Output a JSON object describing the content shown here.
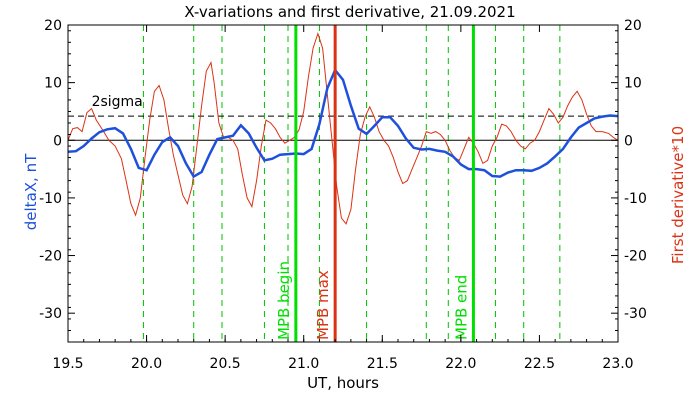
{
  "chart_data": {
    "type": "line",
    "title": "X-variations and first derivative, 21.09.2021",
    "xlabel": "UT, hours",
    "ylabel_left": "deltaX, nT",
    "ylabel_right": "First derivative*10",
    "xlim": [
      19.5,
      23.0
    ],
    "ylim": [
      -35,
      20
    ],
    "x_ticks": [
      19.5,
      20.0,
      20.5,
      21.0,
      21.5,
      22.0,
      22.5,
      23.0
    ],
    "x_tick_labels": [
      "19.5",
      "20.0",
      "20.5",
      "21.0",
      "21.5",
      "22.0",
      "22.5",
      "23.0"
    ],
    "y_ticks": [
      -30,
      -20,
      -10,
      0,
      10,
      20
    ],
    "y_tick_labels": [
      "-30",
      "-20",
      "-10",
      "0",
      "10",
      "20"
    ],
    "colors": {
      "deltaX": "#1e50dc",
      "derivative": "#dc3214",
      "mpb": "#00e000",
      "mpb_max": "#dc3214",
      "dashed_green": "#00c000",
      "axis": "#000000"
    },
    "threshold": {
      "label": "2sigma",
      "value": 4.2
    },
    "vertical_markers": [
      {
        "label": "MPB begin",
        "x": 20.95,
        "color": "#00e000"
      },
      {
        "label": "MPB max",
        "x": 21.2,
        "color": "#dc3214"
      },
      {
        "label": "MPB end",
        "x": 22.08,
        "color": "#00e000"
      }
    ],
    "dashed_lines": [
      19.98,
      20.3,
      20.48,
      20.75,
      20.9,
      21.1,
      21.4,
      21.78,
      21.92,
      22.22,
      22.4,
      22.63
    ],
    "series": [
      {
        "key": "deltaX",
        "values": [
          [
            19.5,
            -2
          ],
          [
            19.55,
            -1.9
          ],
          [
            19.6,
            -1
          ],
          [
            19.65,
            0.3
          ],
          [
            19.7,
            1.4
          ],
          [
            19.75,
            1.9
          ],
          [
            19.8,
            2.1
          ],
          [
            19.85,
            1.2
          ],
          [
            19.9,
            -1.5
          ],
          [
            19.95,
            -4.8
          ],
          [
            20.0,
            -5.2
          ],
          [
            20.05,
            -2.5
          ],
          [
            20.1,
            -0.3
          ],
          [
            20.15,
            0.5
          ],
          [
            20.2,
            -1
          ],
          [
            20.25,
            -4
          ],
          [
            20.3,
            -6.3
          ],
          [
            20.35,
            -5.5
          ],
          [
            20.4,
            -2.5
          ],
          [
            20.45,
            0.2
          ],
          [
            20.5,
            0.5
          ],
          [
            20.55,
            0.8
          ],
          [
            20.6,
            2.6
          ],
          [
            20.65,
            1.2
          ],
          [
            20.7,
            -1.3
          ],
          [
            20.75,
            -3.5
          ],
          [
            20.8,
            -3.2
          ],
          [
            20.85,
            -2.5
          ],
          [
            20.9,
            -2.4
          ],
          [
            20.95,
            -2.3
          ],
          [
            21.0,
            -2.4
          ],
          [
            21.05,
            -1.5
          ],
          [
            21.1,
            2.8
          ],
          [
            21.15,
            9
          ],
          [
            21.2,
            12.2
          ],
          [
            21.25,
            10.5
          ],
          [
            21.3,
            6
          ],
          [
            21.35,
            2
          ],
          [
            21.4,
            1.1
          ],
          [
            21.45,
            2.5
          ],
          [
            21.5,
            4
          ],
          [
            21.55,
            4
          ],
          [
            21.6,
            2.5
          ],
          [
            21.65,
            0.3
          ],
          [
            21.7,
            -1.3
          ],
          [
            21.75,
            -1.6
          ],
          [
            21.8,
            -1.5
          ],
          [
            21.85,
            -1.8
          ],
          [
            21.9,
            -2
          ],
          [
            21.95,
            -2.8
          ],
          [
            22.0,
            -4.2
          ],
          [
            22.05,
            -5
          ],
          [
            22.1,
            -5
          ],
          [
            22.15,
            -5.2
          ],
          [
            22.2,
            -6.2
          ],
          [
            22.25,
            -6.3
          ],
          [
            22.3,
            -5.6
          ],
          [
            22.35,
            -5.2
          ],
          [
            22.4,
            -5.2
          ],
          [
            22.45,
            -5.3
          ],
          [
            22.5,
            -4.8
          ],
          [
            22.55,
            -4
          ],
          [
            22.6,
            -2.8
          ],
          [
            22.65,
            -1.5
          ],
          [
            22.7,
            0.5
          ],
          [
            22.75,
            2.2
          ],
          [
            22.8,
            3
          ],
          [
            22.85,
            3.8
          ],
          [
            22.9,
            4.1
          ],
          [
            22.95,
            4.3
          ],
          [
            23.0,
            4.2
          ]
        ]
      },
      {
        "key": "derivative",
        "values": [
          [
            19.5,
            0
          ],
          [
            19.53,
            2
          ],
          [
            19.56,
            2.2
          ],
          [
            19.59,
            1.5
          ],
          [
            19.62,
            4.8
          ],
          [
            19.65,
            5.5
          ],
          [
            19.68,
            3.5
          ],
          [
            19.72,
            1.8
          ],
          [
            19.76,
            0
          ],
          [
            19.8,
            -1
          ],
          [
            19.84,
            -3.2
          ],
          [
            19.87,
            -7
          ],
          [
            19.9,
            -11
          ],
          [
            19.93,
            -13
          ],
          [
            19.96,
            -10
          ],
          [
            19.99,
            -3
          ],
          [
            20.02,
            3.5
          ],
          [
            20.05,
            8.5
          ],
          [
            20.08,
            9.5
          ],
          [
            20.11,
            7
          ],
          [
            20.14,
            2
          ],
          [
            20.17,
            -2.5
          ],
          [
            20.2,
            -6
          ],
          [
            20.23,
            -9.5
          ],
          [
            20.26,
            -11
          ],
          [
            20.29,
            -8
          ],
          [
            20.32,
            -1
          ],
          [
            20.35,
            6
          ],
          [
            20.38,
            12
          ],
          [
            20.41,
            13.5
          ],
          [
            20.43,
            10
          ],
          [
            20.46,
            3
          ],
          [
            20.49,
            0.5
          ],
          [
            20.52,
            0.5
          ],
          [
            20.55,
            0
          ],
          [
            20.58,
            -1.5
          ],
          [
            20.61,
            -6
          ],
          [
            20.64,
            -10
          ],
          [
            20.67,
            -11.5
          ],
          [
            20.7,
            -7
          ],
          [
            20.73,
            -1
          ],
          [
            20.76,
            3.5
          ],
          [
            20.79,
            3
          ],
          [
            20.82,
            2
          ],
          [
            20.85,
            0.5
          ],
          [
            20.88,
            -0.5
          ],
          [
            20.91,
            0
          ],
          [
            20.94,
            0.5
          ],
          [
            20.97,
            1.8
          ],
          [
            21.0,
            5
          ],
          [
            21.03,
            11
          ],
          [
            21.06,
            16
          ],
          [
            21.09,
            18.5
          ],
          [
            21.12,
            16
          ],
          [
            21.15,
            8
          ],
          [
            21.18,
            0
          ],
          [
            21.21,
            -8
          ],
          [
            21.24,
            -13.5
          ],
          [
            21.27,
            -14.5
          ],
          [
            21.3,
            -12
          ],
          [
            21.33,
            -5
          ],
          [
            21.36,
            1
          ],
          [
            21.39,
            4
          ],
          [
            21.42,
            5.8
          ],
          [
            21.45,
            4
          ],
          [
            21.48,
            1.5
          ],
          [
            21.51,
            0
          ],
          [
            21.54,
            -1
          ],
          [
            21.57,
            -3
          ],
          [
            21.6,
            -5.5
          ],
          [
            21.63,
            -7.5
          ],
          [
            21.66,
            -7
          ],
          [
            21.69,
            -5
          ],
          [
            21.72,
            -3
          ],
          [
            21.75,
            -1
          ],
          [
            21.78,
            1.5
          ],
          [
            21.81,
            1.2
          ],
          [
            21.84,
            1.5
          ],
          [
            21.87,
            1
          ],
          [
            21.9,
            0
          ],
          [
            21.93,
            -1.8
          ],
          [
            21.96,
            -3
          ],
          [
            21.99,
            -3.5
          ],
          [
            22.02,
            -1.5
          ],
          [
            22.05,
            0.5
          ],
          [
            22.08,
            -0.5
          ],
          [
            22.11,
            -2
          ],
          [
            22.14,
            -4
          ],
          [
            22.17,
            -3.5
          ],
          [
            22.2,
            -1
          ],
          [
            22.23,
            0.5
          ],
          [
            22.26,
            2.8
          ],
          [
            22.29,
            2.5
          ],
          [
            22.32,
            1.5
          ],
          [
            22.35,
            0
          ],
          [
            22.38,
            -1
          ],
          [
            22.41,
            -1.5
          ],
          [
            22.44,
            -0.5
          ],
          [
            22.47,
            0
          ],
          [
            22.5,
            1.5
          ],
          [
            22.53,
            3.5
          ],
          [
            22.56,
            5.5
          ],
          [
            22.59,
            4.5
          ],
          [
            22.62,
            3
          ],
          [
            22.65,
            4
          ],
          [
            22.68,
            6
          ],
          [
            22.71,
            7.5
          ],
          [
            22.74,
            8.5
          ],
          [
            22.77,
            7
          ],
          [
            22.8,
            4.5
          ],
          [
            22.83,
            2.5
          ],
          [
            22.86,
            1.5
          ],
          [
            22.9,
            1.5
          ],
          [
            22.94,
            1.2
          ],
          [
            22.97,
            0.5
          ],
          [
            23.0,
            0
          ]
        ]
      }
    ]
  }
}
